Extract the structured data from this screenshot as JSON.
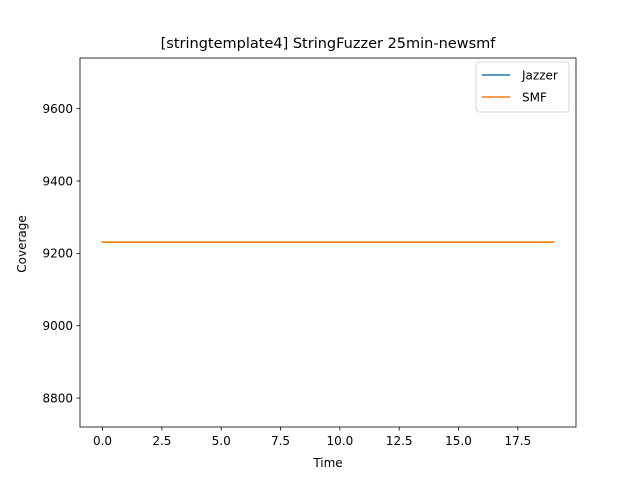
{
  "chart_data": {
    "type": "line",
    "title": "[stringtemplate4] StringFuzzer 25min-newsmf",
    "xlabel": "Time",
    "ylabel": "Coverage",
    "xlim": [
      -0.95,
      19.95
    ],
    "ylim": [
      8720,
      9740
    ],
    "xticks": [
      0.0,
      2.5,
      5.0,
      7.5,
      10.0,
      12.5,
      15.0,
      17.5
    ],
    "xtick_labels": [
      "0.0",
      "2.5",
      "5.0",
      "7.5",
      "10.0",
      "12.5",
      "15.0",
      "17.5"
    ],
    "yticks": [
      8800,
      9000,
      9200,
      9400,
      9600
    ],
    "ytick_labels": [
      "8800",
      "9000",
      "9200",
      "9400",
      "9600"
    ],
    "grid": false,
    "legend": "top-right",
    "series": [
      {
        "name": "Jazzer",
        "color": "#1f77b4",
        "x": [
          0,
          1,
          2,
          3,
          4,
          5,
          6,
          7,
          8,
          9,
          10,
          11,
          12,
          13,
          14,
          15,
          16,
          17,
          18,
          19
        ],
        "y": [
          9231,
          9231,
          9231,
          9231,
          9231,
          9231,
          9231,
          9231,
          9231,
          9231,
          9231,
          9231,
          9231,
          9231,
          9231,
          9231,
          9231,
          9231,
          9231,
          9231
        ]
      },
      {
        "name": "SMF",
        "color": "#ff7f0e",
        "x": [
          0,
          1,
          2,
          3,
          4,
          5,
          6,
          7,
          8,
          9,
          10,
          11,
          12,
          13,
          14,
          15,
          16,
          17,
          18,
          19
        ],
        "y": [
          9231,
          9231,
          9231,
          9231,
          9231,
          9231,
          9231,
          9231,
          9231,
          9231,
          9231,
          9231,
          9231,
          9231,
          9231,
          9231,
          9231,
          9231,
          9231,
          9231
        ]
      }
    ]
  }
}
